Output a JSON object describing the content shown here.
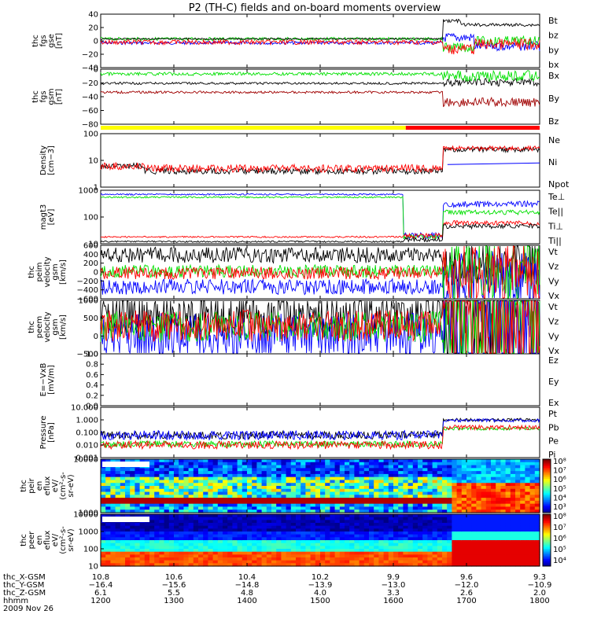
{
  "title": "P2 (TH-C) fields and on-board moments overview",
  "colors": {
    "black": "#000000",
    "red": "#ff0000",
    "dkred": "#a00000",
    "green": "#00e000",
    "blue": "#0000ff"
  },
  "chart_data": {
    "type": "line",
    "x_ticks": [
      "1200",
      "1300",
      "1400",
      "1500",
      "1600",
      "1700",
      "1800"
    ],
    "x_label_rows": [
      {
        "name": "thc_X-GSM",
        "values": [
          "10.8",
          "10.6",
          "10.4",
          "10.2",
          "9.9",
          "9.6",
          "9.3"
        ]
      },
      {
        "name": "thc_Y-GSM",
        "values": [
          "−16.4",
          "−15.6",
          "−14.8",
          "−13.9",
          "−13.0",
          "−12.0",
          "−10.9"
        ]
      },
      {
        "name": "thc_Z-GSM",
        "values": [
          "6.1",
          "5.5",
          "4.8",
          "4.0",
          "3.3",
          "2.6",
          "2.0"
        ]
      },
      {
        "name": "hhmm",
        "values": [
          "1200",
          "1300",
          "1400",
          "1500",
          "1600",
          "1700",
          "1800"
        ]
      }
    ],
    "date": "2009 Nov 26",
    "panels": [
      {
        "id": "fgs-gse",
        "ylabel": [
          "thc",
          "fgs",
          "gse",
          "[nT]"
        ],
        "ylim": [
          -40,
          40
        ],
        "yticks": [
          "40",
          "20",
          "0",
          "−20",
          "−40"
        ],
        "legend": [
          {
            "name": "Bt",
            "color": "#000000"
          },
          {
            "name": "bz",
            "color": "#ff0000"
          },
          {
            "name": "by",
            "color": "#00e000"
          },
          {
            "name": "bx",
            "color": "#0000ff"
          }
        ]
      },
      {
        "id": "fgs-gsm",
        "ylabel": [
          "thc",
          "fgs",
          "gsm",
          "[nT]"
        ],
        "ylim": [
          -90,
          15
        ],
        "yticks": [
          "0",
          "−20",
          "−40",
          "−60",
          "−80"
        ],
        "legend": [
          {
            "name": "Bx",
            "color": "#000000"
          },
          {
            "name": "By",
            "color": "#00e000"
          },
          {
            "name": "Bz",
            "color": "#a00000"
          }
        ]
      },
      {
        "id": "density",
        "ylabel": [
          "Density",
          "[cm−3]"
        ],
        "log": true,
        "ylim": [
          1,
          100
        ],
        "yticks": [
          "100",
          "10",
          "1"
        ],
        "legend": [
          {
            "name": "Ne",
            "color": "#a00000"
          },
          {
            "name": "Ni",
            "color": "#000000"
          },
          {
            "name": "Npot",
            "color": "#0000ff"
          }
        ]
      },
      {
        "id": "temp",
        "ylabel": [
          "magt3",
          "[eV]"
        ],
        "log": true,
        "ylim": [
          10,
          1000
        ],
        "yticks": [
          "1000",
          "100",
          "10"
        ],
        "legend": [
          {
            "name": "Te⊥",
            "color": "#ff0000"
          },
          {
            "name": "Te||",
            "color": "#000000"
          },
          {
            "name": "Ti⊥",
            "color": "#0000ff"
          },
          {
            "name": "Ti||",
            "color": "#00e000"
          }
        ]
      },
      {
        "id": "peim",
        "ylabel": [
          "thc",
          "peim",
          "velocity",
          "gsm",
          "[km/s]"
        ],
        "ylim": [
          -600,
          600
        ],
        "yticks": [
          "600",
          "400",
          "200",
          "0",
          "−200",
          "−400",
          "−600"
        ],
        "legend": [
          {
            "name": "Vt",
            "color": "#000000"
          },
          {
            "name": "Vz",
            "color": "#ff0000"
          },
          {
            "name": "Vy",
            "color": "#00e000"
          },
          {
            "name": "Vx",
            "color": "#0000ff"
          }
        ]
      },
      {
        "id": "peem",
        "ylabel": [
          "thc",
          "peem",
          "velocity",
          "gsm",
          "[km/s]"
        ],
        "ylim": [
          -1000,
          1000
        ],
        "yticks": [
          "1000",
          "500",
          "0",
          "−500"
        ],
        "legend": [
          {
            "name": "Vt",
            "color": "#000000"
          },
          {
            "name": "Vz",
            "color": "#ff0000"
          },
          {
            "name": "Vy",
            "color": "#00e000"
          },
          {
            "name": "Vx",
            "color": "#0000ff"
          }
        ]
      },
      {
        "id": "efield",
        "ylabel": [
          "E=−VxB",
          "[mV/m]"
        ],
        "ylim": [
          0,
          1
        ],
        "yticks": [
          "1.0",
          "0.8",
          "0.6",
          "0.4",
          "0.2",
          "0.0"
        ],
        "legend": [
          {
            "name": "Ez",
            "color": "#ff0000"
          },
          {
            "name": "Ey",
            "color": "#00e000"
          },
          {
            "name": "Ex",
            "color": "#0000ff"
          }
        ]
      },
      {
        "id": "pressure",
        "ylabel": [
          "Pressure",
          "[nPa]"
        ],
        "log": true,
        "ylim": [
          0.001,
          10
        ],
        "yticks": [
          "10.000",
          "1.000",
          "0.100",
          "0.010",
          "0.001"
        ],
        "legend": [
          {
            "name": "Pt",
            "color": "#000000"
          },
          {
            "name": "Pb",
            "color": "#ff0000"
          },
          {
            "name": "Pe",
            "color": "#00e000"
          },
          {
            "name": "Pi",
            "color": "#0000ff"
          }
        ]
      },
      {
        "id": "peir",
        "type": "heatmap",
        "ylabel": [
          "thc",
          "peir",
          "en",
          "eflux",
          "eV/",
          "(cm²-s-",
          "sr-eV)"
        ],
        "yticks": [
          "10000",
          "1000"
        ],
        "colorbar": [
          "10⁸",
          "10⁷",
          "10⁶",
          "10⁵",
          "10⁴",
          "10³"
        ]
      },
      {
        "id": "peer",
        "type": "heatmap",
        "ylabel": [
          "thc",
          "peer",
          "en",
          "eflux",
          "eV/",
          "(cm²-s-",
          "sr-eV)"
        ],
        "yticks": [
          "10000",
          "1000",
          "100",
          "10"
        ],
        "colorbar": [
          "10⁸",
          "10⁷",
          "10⁶",
          "10⁵",
          "10⁴"
        ]
      }
    ]
  }
}
